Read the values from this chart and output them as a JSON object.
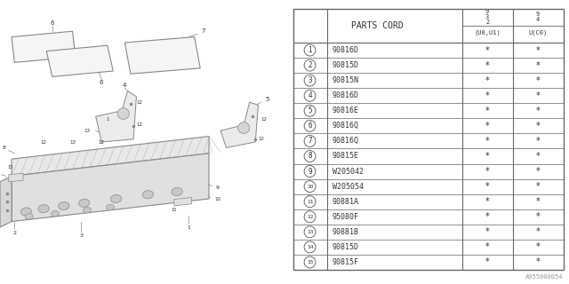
{
  "bg_color": "#ffffff",
  "watermark": "A955000054",
  "line_color": "#888888",
  "text_color": "#333333",
  "table": {
    "header_col": "PARTS CORD",
    "rows": [
      {
        "num": 1,
        "part": "90816D"
      },
      {
        "num": 2,
        "part": "90815D"
      },
      {
        "num": 3,
        "part": "90815N"
      },
      {
        "num": 4,
        "part": "90816D"
      },
      {
        "num": 5,
        "part": "90816E"
      },
      {
        "num": 6,
        "part": "90816Q"
      },
      {
        "num": 7,
        "part": "90816Q"
      },
      {
        "num": 8,
        "part": "90815E"
      },
      {
        "num": 9,
        "part": "W205042"
      },
      {
        "num": 10,
        "part": "W205054"
      },
      {
        "num": 11,
        "part": "90881A"
      },
      {
        "num": 12,
        "part": "95080F"
      },
      {
        "num": 13,
        "part": "90881B"
      },
      {
        "num": 14,
        "part": "90815D"
      },
      {
        "num": 15,
        "part": "90815F"
      }
    ],
    "col_headers_top": [
      "9",
      "9"
    ],
    "col_headers_mid": [
      "3",
      "4"
    ],
    "col_headers_bot_l": "2",
    "col_label_r1": "(U0,U1)",
    "col_label_r2": "U(C0)"
  }
}
